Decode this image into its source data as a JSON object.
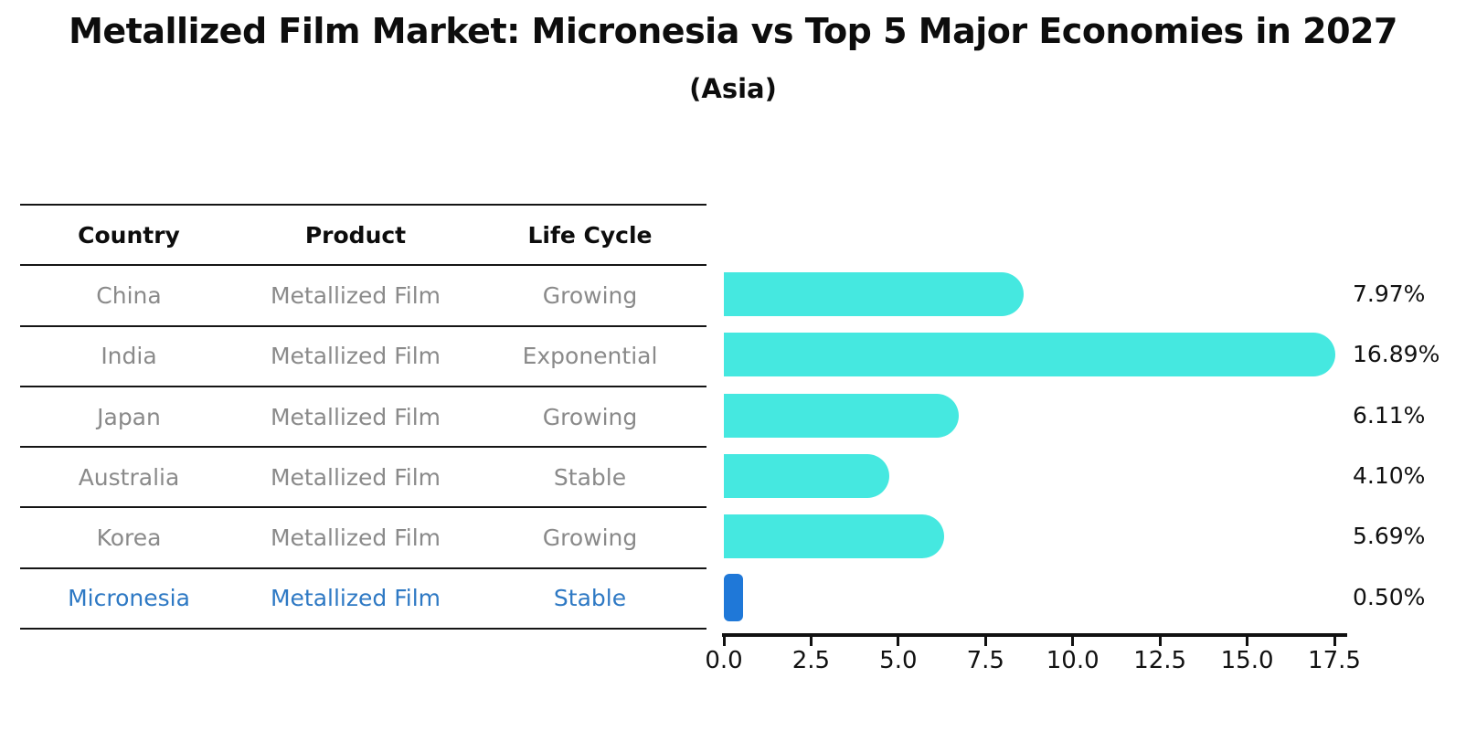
{
  "chart_data": {
    "type": "bar",
    "orientation": "horizontal",
    "title": "Metallized Film Market: Micronesia vs Top 5 Major Economies in 2027",
    "subtitle": "(Asia)",
    "categories": [
      "China",
      "India",
      "Japan",
      "Australia",
      "Korea",
      "Micronesia"
    ],
    "values": [
      7.97,
      16.89,
      6.11,
      4.1,
      5.69,
      0.5
    ],
    "value_labels": [
      "7.97%",
      "16.89%",
      "6.11%",
      "4.10%",
      "5.69%",
      "0.50%"
    ],
    "xlim": [
      0,
      17.5
    ],
    "x_ticks": [
      "0.0",
      "2.5",
      "5.0",
      "7.5",
      "10.0",
      "12.5",
      "15.0",
      "17.5"
    ],
    "grid": false,
    "legend": false,
    "bar_color": "#45e8e0",
    "highlight_color": "#1f78d8",
    "highlight_index": 5
  },
  "table": {
    "headers": [
      "Country",
      "Product",
      "Life Cycle"
    ],
    "rows": [
      {
        "country": "China",
        "product": "Metallized Film",
        "life_cycle": "Growing",
        "highlight": false
      },
      {
        "country": "India",
        "product": "Metallized Film",
        "life_cycle": "Exponential",
        "highlight": false
      },
      {
        "country": "Japan",
        "product": "Metallized Film",
        "life_cycle": "Growing",
        "highlight": false
      },
      {
        "country": "Australia",
        "product": "Metallized Film",
        "life_cycle": "Stable",
        "highlight": false
      },
      {
        "country": "Korea",
        "product": "Metallized Film",
        "life_cycle": "Growing",
        "highlight": false
      },
      {
        "country": "Micronesia",
        "product": "Metallized Film",
        "life_cycle": "Stable",
        "highlight": true
      }
    ]
  },
  "colors": {
    "text": "#0d0d0d",
    "muted_text": "#8a8a8a",
    "highlight_text": "#2e79c4",
    "line": "#151515"
  }
}
